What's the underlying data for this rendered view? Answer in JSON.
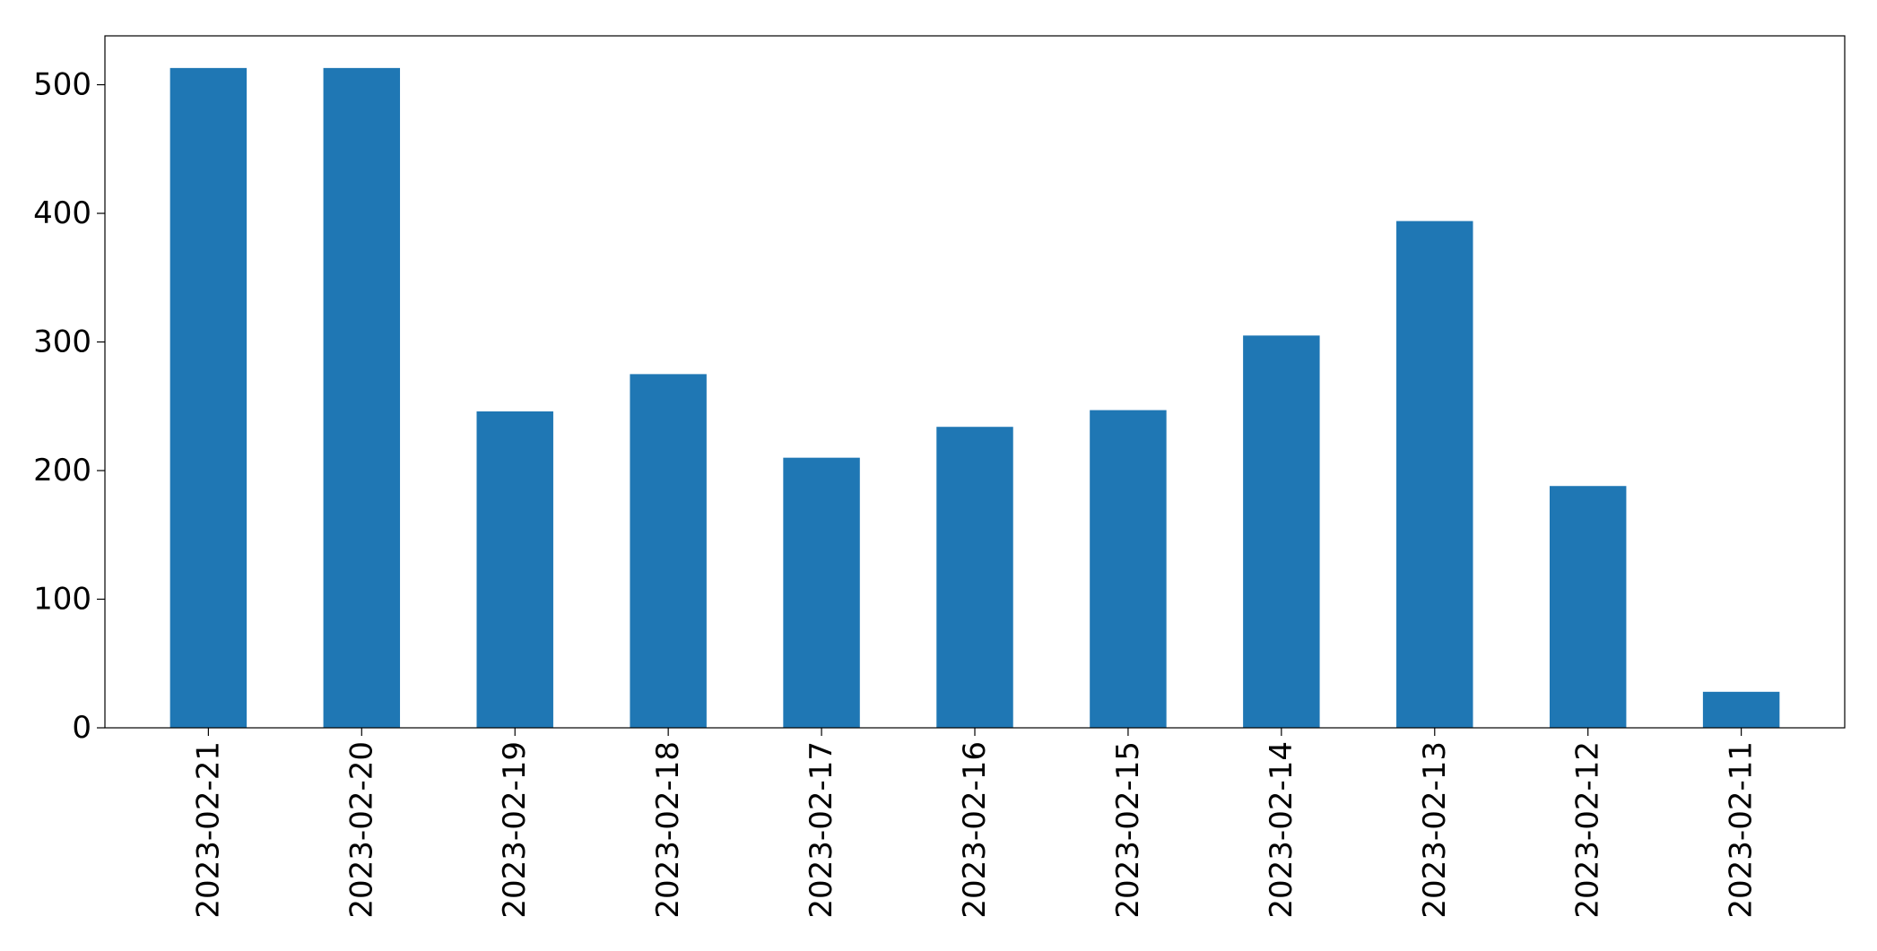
{
  "chart_data": {
    "type": "bar",
    "title": "",
    "xlabel": "",
    "ylabel": "",
    "categories": [
      "2023-02-21",
      "2023-02-20",
      "2023-02-19",
      "2023-02-18",
      "2023-02-17",
      "2023-02-16",
      "2023-02-15",
      "2023-02-14",
      "2023-02-13",
      "2023-02-12",
      "2023-02-11"
    ],
    "values": [
      513,
      513,
      246,
      275,
      210,
      234,
      247,
      305,
      394,
      188,
      28
    ],
    "ylim": [
      0,
      538
    ],
    "yticks": [
      0,
      100,
      200,
      300,
      400,
      500
    ],
    "ytick_labels": [
      "0",
      "100",
      "200",
      "300",
      "400",
      "500"
    ],
    "bar_color": "#1f77b4",
    "grid": false,
    "legend": "none"
  }
}
